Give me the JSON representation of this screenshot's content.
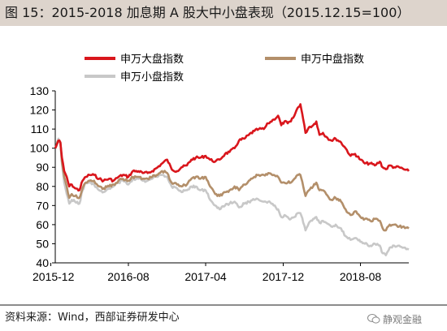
{
  "header": {
    "title": "图 15：2015-2018 加息期 A 股大中小盘表现（2015.12.15=100）"
  },
  "footer": {
    "source": "资料来源：Wind，西部证券研发中心",
    "watermark": "静观金融"
  },
  "chart_data": {
    "type": "line",
    "title": "",
    "xlabel": "",
    "ylabel": "",
    "ylim": [
      40,
      130
    ],
    "yticks": [
      40,
      50,
      60,
      70,
      80,
      90,
      100,
      110,
      120,
      130
    ],
    "xlim": [
      "2015-12-15",
      "2018-12-31"
    ],
    "xticks": [
      "2015-12",
      "2016-08",
      "2017-04",
      "2017-12",
      "2018-08"
    ],
    "grid": false,
    "legend_position": "top",
    "series": [
      {
        "name": "申万大盘指数",
        "color": "#d9161c",
        "points": [
          [
            "2015-12-15",
            100
          ],
          [
            "2015-12-25",
            104
          ],
          [
            "2015-12-31",
            103
          ],
          [
            "2016-01-05",
            95
          ],
          [
            "2016-01-12",
            88
          ],
          [
            "2016-01-20",
            85
          ],
          [
            "2016-01-28",
            80
          ],
          [
            "2016-02-05",
            81
          ],
          [
            "2016-02-15",
            79
          ],
          [
            "2016-02-29",
            78
          ],
          [
            "2016-03-10",
            83
          ],
          [
            "2016-03-20",
            85
          ],
          [
            "2016-04-01",
            86
          ],
          [
            "2016-04-15",
            86
          ],
          [
            "2016-05-01",
            84
          ],
          [
            "2016-05-15",
            83
          ],
          [
            "2016-06-01",
            84
          ],
          [
            "2016-06-15",
            83
          ],
          [
            "2016-07-01",
            85
          ],
          [
            "2016-07-15",
            86
          ],
          [
            "2016-08-01",
            85
          ],
          [
            "2016-08-15",
            88
          ],
          [
            "2016-09-01",
            88
          ],
          [
            "2016-09-15",
            87
          ],
          [
            "2016-10-01",
            87
          ],
          [
            "2016-10-15",
            88
          ],
          [
            "2016-11-01",
            90
          ],
          [
            "2016-11-15",
            92
          ],
          [
            "2016-12-01",
            94
          ],
          [
            "2016-12-15",
            89
          ],
          [
            "2017-01-01",
            88
          ],
          [
            "2017-01-15",
            90
          ],
          [
            "2017-02-01",
            91
          ],
          [
            "2017-02-15",
            94
          ],
          [
            "2017-03-01",
            95
          ],
          [
            "2017-03-15",
            95
          ],
          [
            "2017-04-01",
            96
          ],
          [
            "2017-04-15",
            94
          ],
          [
            "2017-05-01",
            93
          ],
          [
            "2017-05-15",
            94
          ],
          [
            "2017-06-01",
            97
          ],
          [
            "2017-06-15",
            98
          ],
          [
            "2017-07-01",
            100
          ],
          [
            "2017-07-15",
            104
          ],
          [
            "2017-08-01",
            105
          ],
          [
            "2017-08-15",
            107
          ],
          [
            "2017-09-01",
            109
          ],
          [
            "2017-09-15",
            110
          ],
          [
            "2017-10-01",
            110
          ],
          [
            "2017-10-15",
            113
          ],
          [
            "2017-11-01",
            115
          ],
          [
            "2017-11-15",
            117
          ],
          [
            "2017-11-25",
            112
          ],
          [
            "2017-12-05",
            114
          ],
          [
            "2017-12-15",
            113
          ],
          [
            "2017-12-25",
            114
          ],
          [
            "2018-01-05",
            117
          ],
          [
            "2018-01-15",
            121
          ],
          [
            "2018-01-24",
            123
          ],
          [
            "2018-02-02",
            115
          ],
          [
            "2018-02-09",
            108
          ],
          [
            "2018-02-20",
            111
          ],
          [
            "2018-03-05",
            112
          ],
          [
            "2018-03-15",
            114
          ],
          [
            "2018-03-25",
            107
          ],
          [
            "2018-04-05",
            108
          ],
          [
            "2018-04-15",
            106
          ],
          [
            "2018-05-01",
            104
          ],
          [
            "2018-05-15",
            105
          ],
          [
            "2018-06-01",
            103
          ],
          [
            "2018-06-15",
            100
          ],
          [
            "2018-07-01",
            96
          ],
          [
            "2018-07-15",
            97
          ],
          [
            "2018-08-01",
            94
          ],
          [
            "2018-08-15",
            92
          ],
          [
            "2018-09-01",
            92
          ],
          [
            "2018-09-15",
            91
          ],
          [
            "2018-10-01",
            93
          ],
          [
            "2018-10-10",
            90
          ],
          [
            "2018-10-20",
            89
          ],
          [
            "2018-11-01",
            91
          ],
          [
            "2018-11-15",
            90
          ],
          [
            "2018-12-01",
            90
          ],
          [
            "2018-12-15",
            89
          ],
          [
            "2018-12-31",
            88
          ]
        ]
      },
      {
        "name": "申万中盘指数",
        "color": "#b38f6a",
        "points": [
          [
            "2015-12-15",
            100
          ],
          [
            "2015-12-25",
            104
          ],
          [
            "2015-12-31",
            103
          ],
          [
            "2016-01-05",
            93
          ],
          [
            "2016-01-12",
            85
          ],
          [
            "2016-01-20",
            80
          ],
          [
            "2016-01-28",
            74
          ],
          [
            "2016-02-05",
            76
          ],
          [
            "2016-02-15",
            75
          ],
          [
            "2016-02-29",
            74
          ],
          [
            "2016-03-10",
            79
          ],
          [
            "2016-03-20",
            82
          ],
          [
            "2016-04-01",
            83
          ],
          [
            "2016-04-15",
            83
          ],
          [
            "2016-05-01",
            80
          ],
          [
            "2016-05-15",
            79
          ],
          [
            "2016-06-01",
            80
          ],
          [
            "2016-06-15",
            81
          ],
          [
            "2016-07-01",
            83
          ],
          [
            "2016-07-15",
            84
          ],
          [
            "2016-08-01",
            83
          ],
          [
            "2016-08-15",
            85
          ],
          [
            "2016-09-01",
            85
          ],
          [
            "2016-09-15",
            84
          ],
          [
            "2016-10-01",
            84
          ],
          [
            "2016-10-15",
            85
          ],
          [
            "2016-11-01",
            86
          ],
          [
            "2016-11-15",
            88
          ],
          [
            "2016-12-01",
            87
          ],
          [
            "2016-12-15",
            82
          ],
          [
            "2017-01-01",
            81
          ],
          [
            "2017-01-15",
            80
          ],
          [
            "2017-02-01",
            81
          ],
          [
            "2017-02-15",
            84
          ],
          [
            "2017-03-01",
            85
          ],
          [
            "2017-03-15",
            84
          ],
          [
            "2017-04-01",
            85
          ],
          [
            "2017-04-15",
            80
          ],
          [
            "2017-05-01",
            76
          ],
          [
            "2017-05-15",
            75
          ],
          [
            "2017-06-01",
            77
          ],
          [
            "2017-06-15",
            78
          ],
          [
            "2017-07-01",
            80
          ],
          [
            "2017-07-15",
            78
          ],
          [
            "2017-08-01",
            81
          ],
          [
            "2017-08-15",
            83
          ],
          [
            "2017-09-01",
            85
          ],
          [
            "2017-09-15",
            86
          ],
          [
            "2017-10-01",
            86
          ],
          [
            "2017-10-15",
            87
          ],
          [
            "2017-11-01",
            86
          ],
          [
            "2017-11-15",
            85
          ],
          [
            "2017-11-25",
            82
          ],
          [
            "2017-12-05",
            82
          ],
          [
            "2017-12-15",
            82
          ],
          [
            "2017-12-25",
            82
          ],
          [
            "2018-01-05",
            84
          ],
          [
            "2018-01-15",
            86
          ],
          [
            "2018-01-24",
            86
          ],
          [
            "2018-02-02",
            80
          ],
          [
            "2018-02-09",
            75
          ],
          [
            "2018-02-20",
            78
          ],
          [
            "2018-03-05",
            80
          ],
          [
            "2018-03-15",
            82
          ],
          [
            "2018-03-25",
            78
          ],
          [
            "2018-04-05",
            78
          ],
          [
            "2018-04-15",
            76
          ],
          [
            "2018-05-01",
            73
          ],
          [
            "2018-05-15",
            74
          ],
          [
            "2018-06-01",
            72
          ],
          [
            "2018-06-15",
            68
          ],
          [
            "2018-07-01",
            65
          ],
          [
            "2018-07-15",
            67
          ],
          [
            "2018-08-01",
            64
          ],
          [
            "2018-08-15",
            63
          ],
          [
            "2018-09-01",
            62
          ],
          [
            "2018-09-15",
            63
          ],
          [
            "2018-10-01",
            62
          ],
          [
            "2018-10-10",
            58
          ],
          [
            "2018-10-20",
            57
          ],
          [
            "2018-11-01",
            60
          ],
          [
            "2018-11-15",
            60
          ],
          [
            "2018-12-01",
            59
          ],
          [
            "2018-12-15",
            59
          ],
          [
            "2018-12-31",
            58
          ]
        ]
      },
      {
        "name": "申万小盘指数",
        "color": "#c8c8c8",
        "points": [
          [
            "2015-12-15",
            100
          ],
          [
            "2015-12-25",
            105
          ],
          [
            "2015-12-31",
            103
          ],
          [
            "2016-01-05",
            92
          ],
          [
            "2016-01-12",
            82
          ],
          [
            "2016-01-20",
            76
          ],
          [
            "2016-01-28",
            71
          ],
          [
            "2016-02-05",
            73
          ],
          [
            "2016-02-15",
            72
          ],
          [
            "2016-02-29",
            71
          ],
          [
            "2016-03-10",
            78
          ],
          [
            "2016-03-20",
            82
          ],
          [
            "2016-04-01",
            82
          ],
          [
            "2016-04-15",
            81
          ],
          [
            "2016-05-01",
            78
          ],
          [
            "2016-05-15",
            77
          ],
          [
            "2016-06-01",
            79
          ],
          [
            "2016-06-15",
            80
          ],
          [
            "2016-07-01",
            82
          ],
          [
            "2016-07-15",
            83
          ],
          [
            "2016-08-01",
            81
          ],
          [
            "2016-08-15",
            84
          ],
          [
            "2016-09-01",
            84
          ],
          [
            "2016-09-15",
            83
          ],
          [
            "2016-10-01",
            83
          ],
          [
            "2016-10-15",
            84
          ],
          [
            "2016-11-01",
            85
          ],
          [
            "2016-11-15",
            86
          ],
          [
            "2016-12-01",
            85
          ],
          [
            "2016-12-15",
            80
          ],
          [
            "2017-01-01",
            79
          ],
          [
            "2017-01-15",
            77
          ],
          [
            "2017-02-01",
            78
          ],
          [
            "2017-02-15",
            80
          ],
          [
            "2017-03-01",
            80
          ],
          [
            "2017-03-15",
            78
          ],
          [
            "2017-04-01",
            78
          ],
          [
            "2017-04-15",
            73
          ],
          [
            "2017-05-01",
            70
          ],
          [
            "2017-05-15",
            68
          ],
          [
            "2017-06-01",
            70
          ],
          [
            "2017-06-15",
            71
          ],
          [
            "2017-07-01",
            72
          ],
          [
            "2017-07-15",
            69
          ],
          [
            "2017-08-01",
            71
          ],
          [
            "2017-08-15",
            72
          ],
          [
            "2017-09-01",
            73
          ],
          [
            "2017-09-15",
            73
          ],
          [
            "2017-10-01",
            72
          ],
          [
            "2017-10-15",
            72
          ],
          [
            "2017-11-01",
            70
          ],
          [
            "2017-11-15",
            68
          ],
          [
            "2017-11-25",
            64
          ],
          [
            "2017-12-05",
            65
          ],
          [
            "2017-12-15",
            64
          ],
          [
            "2017-12-25",
            63
          ],
          [
            "2018-01-05",
            64
          ],
          [
            "2018-01-15",
            66
          ],
          [
            "2018-01-24",
            66
          ],
          [
            "2018-02-02",
            61
          ],
          [
            "2018-02-09",
            57
          ],
          [
            "2018-02-20",
            61
          ],
          [
            "2018-03-05",
            63
          ],
          [
            "2018-03-15",
            64
          ],
          [
            "2018-03-25",
            61
          ],
          [
            "2018-04-05",
            62
          ],
          [
            "2018-04-15",
            61
          ],
          [
            "2018-05-01",
            59
          ],
          [
            "2018-05-15",
            60
          ],
          [
            "2018-06-01",
            58
          ],
          [
            "2018-06-15",
            54
          ],
          [
            "2018-07-01",
            52
          ],
          [
            "2018-07-15",
            53
          ],
          [
            "2018-08-01",
            51
          ],
          [
            "2018-08-15",
            50
          ],
          [
            "2018-09-01",
            49
          ],
          [
            "2018-09-15",
            50
          ],
          [
            "2018-10-01",
            49
          ],
          [
            "2018-10-10",
            45
          ],
          [
            "2018-10-20",
            44
          ],
          [
            "2018-11-01",
            48
          ],
          [
            "2018-11-15",
            49
          ],
          [
            "2018-12-01",
            49
          ],
          [
            "2018-12-15",
            48
          ],
          [
            "2018-12-31",
            47
          ]
        ]
      }
    ]
  }
}
